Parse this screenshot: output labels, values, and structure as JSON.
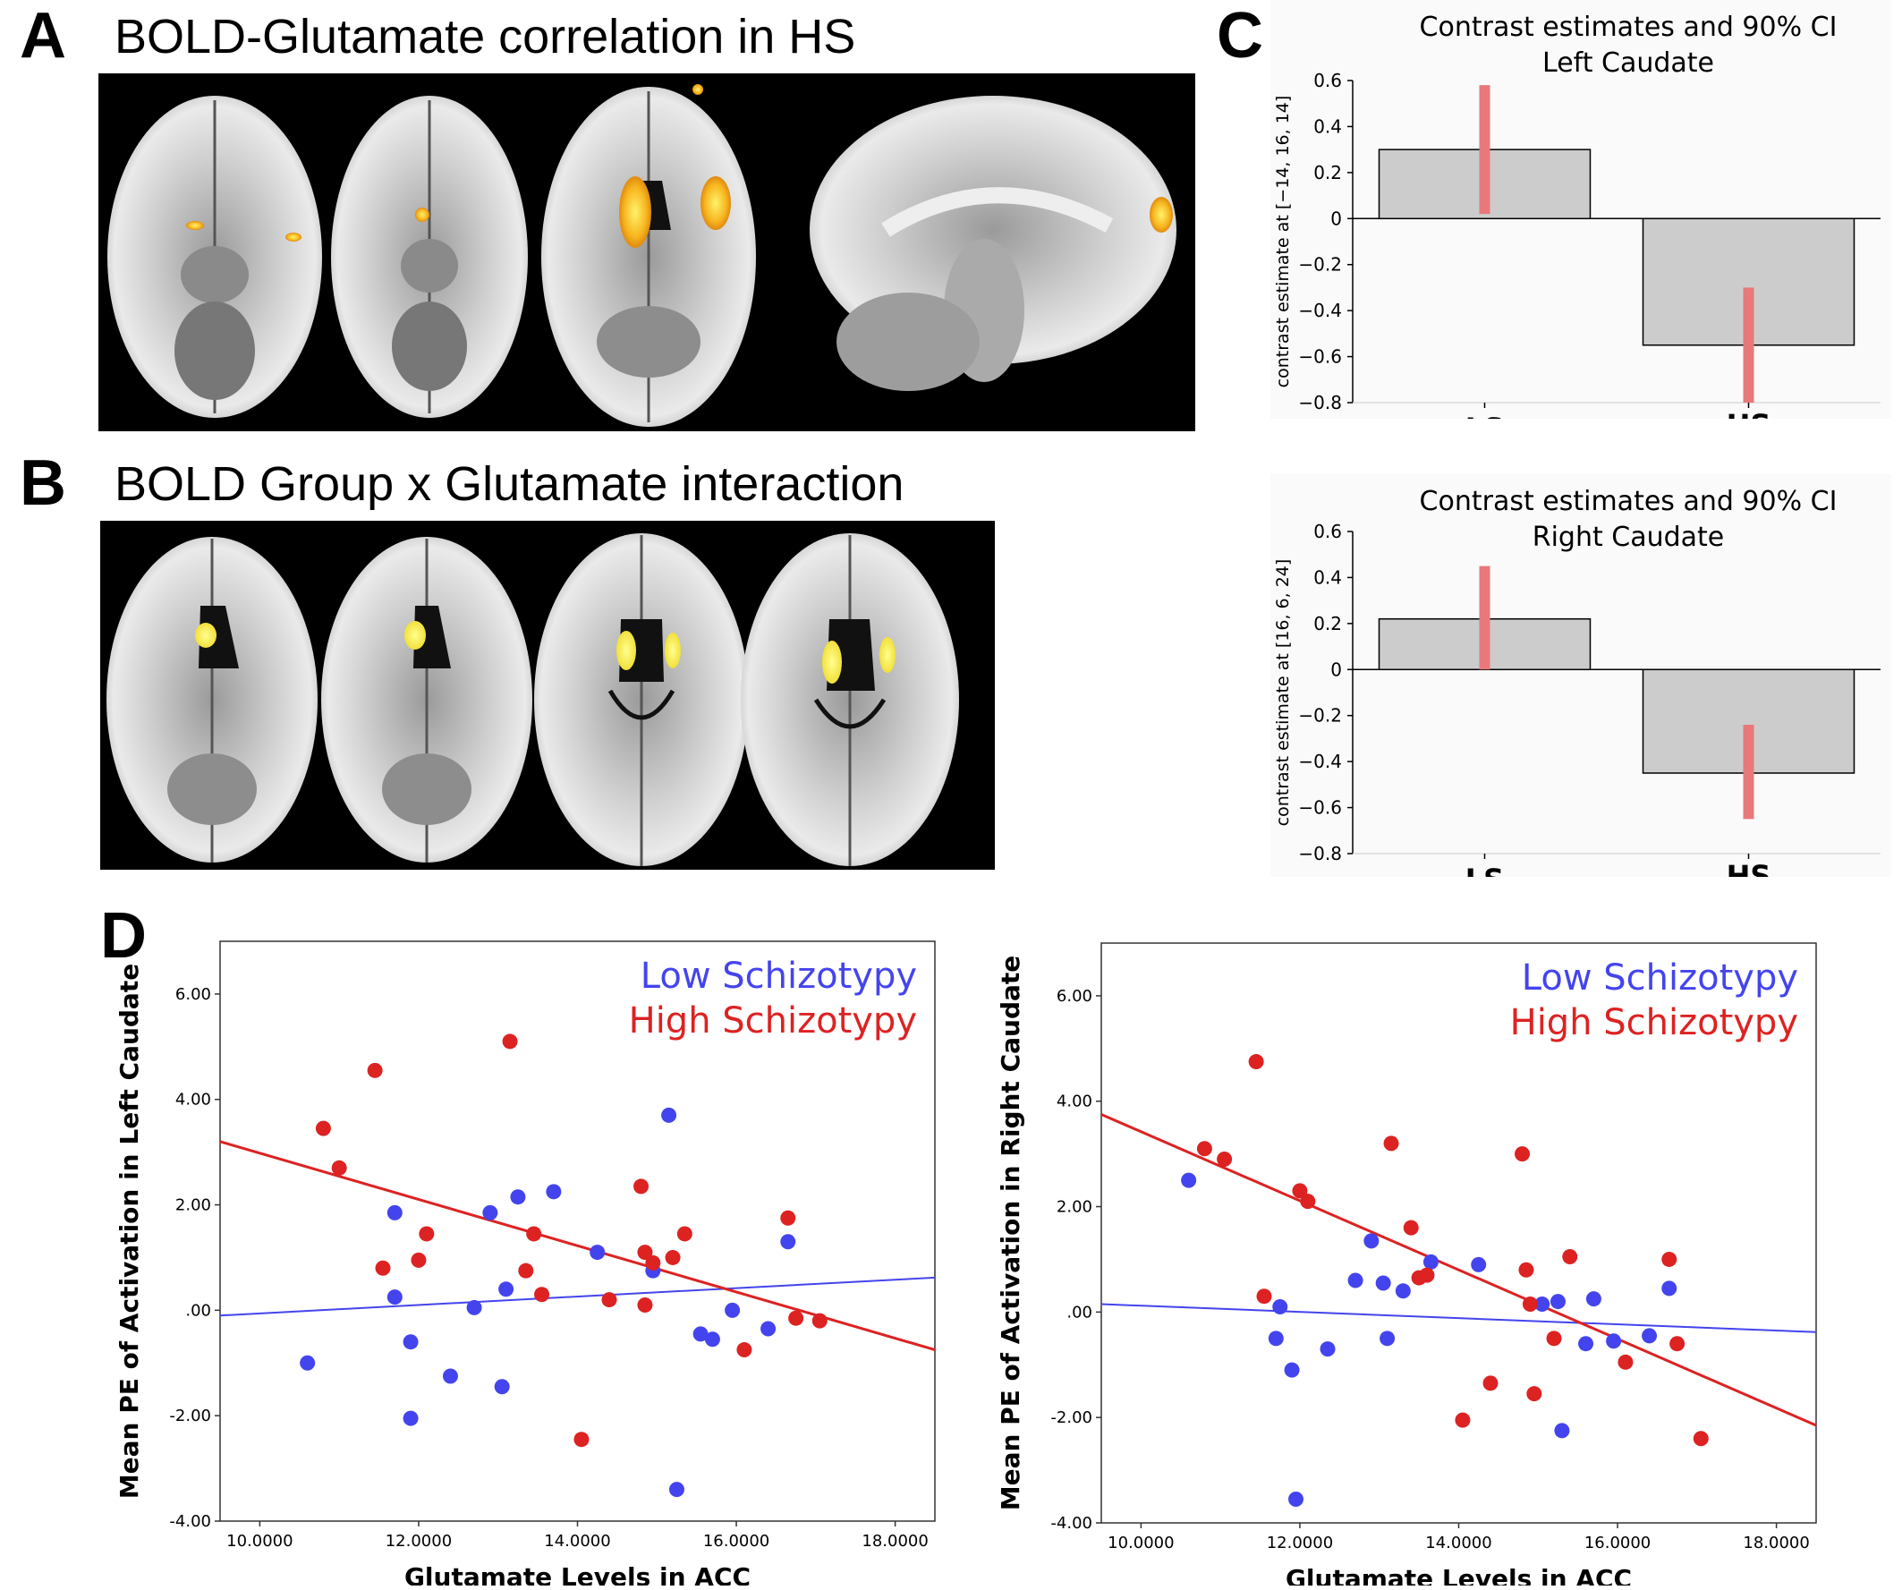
{
  "panels": {
    "A": {
      "letter": "A",
      "title": "BOLD-Glutamate correlation in HS"
    },
    "B": {
      "letter": "B",
      "title": "BOLD Group x Glutamate interaction"
    },
    "C": {
      "letter": "C"
    },
    "D": {
      "letter": "D"
    }
  },
  "chart_data": [
    {
      "type": "bar",
      "id": "c-top",
      "title": "Contrast estimates and 90% CI",
      "subtitle": "Left Caudate",
      "ylabel": "contrast estimate at [−14, 16, 14]",
      "categories": [
        "LS",
        "HS"
      ],
      "values": [
        0.3,
        -0.55
      ],
      "ci": [
        [
          0.02,
          0.58
        ],
        [
          -0.3,
          -0.8
        ]
      ],
      "ylim": [
        -0.8,
        0.6
      ],
      "yticks": [
        "0.6",
        "0.4",
        "0.2",
        "0",
        "−0.2",
        "−0.4",
        "−0.6",
        "−0.8"
      ],
      "bar_color": "#cccccc",
      "ci_color": "#e8787a"
    },
    {
      "type": "bar",
      "id": "c-bottom",
      "title": "Contrast estimates and 90% CI",
      "subtitle": "Right Caudate",
      "ylabel": "contrast estimate at [16, 6, 24]",
      "categories": [
        "LS",
        "HS"
      ],
      "values": [
        0.22,
        -0.45
      ],
      "ci": [
        [
          0.0,
          0.45
        ],
        [
          -0.24,
          -0.65
        ]
      ],
      "ylim": [
        -0.8,
        0.6
      ],
      "yticks": [
        "0.6",
        "0.4",
        "0.2",
        "0",
        "−0.2",
        "−0.4",
        "−0.6",
        "−0.8"
      ],
      "bar_color": "#cccccc",
      "ci_color": "#e8787a"
    },
    {
      "type": "scatter",
      "id": "d-left",
      "xlabel": "Glutamate Levels in ACC",
      "ylabel": "Mean PE of Activation in Left Caudate",
      "xlim": [
        9.5,
        18.5
      ],
      "ylim": [
        -4,
        7
      ],
      "xticks": [
        "10.0000",
        "12.0000",
        "14.0000",
        "16.0000",
        "18.0000"
      ],
      "yticks": [
        "6.00",
        "4.00",
        "2.00",
        ".00",
        "-2.00",
        "-4.00"
      ],
      "legend": [
        "Low Schizotypy",
        "High Schizotypy"
      ],
      "series": [
        {
          "name": "Low Schizotypy",
          "color": "#4444ee",
          "points": [
            [
              10.6,
              -1.0
            ],
            [
              11.7,
              1.85
            ],
            [
              11.7,
              0.25
            ],
            [
              11.9,
              -0.6
            ],
            [
              11.9,
              -2.05
            ],
            [
              12.4,
              -1.25
            ],
            [
              12.7,
              0.05
            ],
            [
              12.9,
              1.85
            ],
            [
              13.05,
              -1.45
            ],
            [
              13.1,
              0.4
            ],
            [
              13.25,
              2.15
            ],
            [
              13.7,
              2.25
            ],
            [
              14.25,
              1.1
            ],
            [
              14.95,
              0.75
            ],
            [
              15.15,
              3.7
            ],
            [
              15.25,
              -3.4
            ],
            [
              15.55,
              -0.45
            ],
            [
              15.7,
              -0.55
            ],
            [
              15.95,
              -0.0
            ],
            [
              16.4,
              -0.35
            ],
            [
              16.65,
              1.3
            ]
          ],
          "fit": [
            [
              9.5,
              -0.1
            ],
            [
              18.5,
              0.62
            ]
          ]
        },
        {
          "name": "High Schizotypy",
          "color": "#dd2222",
          "points": [
            [
              10.8,
              3.45
            ],
            [
              11.0,
              2.7
            ],
            [
              11.45,
              4.55
            ],
            [
              11.55,
              0.8
            ],
            [
              12.0,
              0.95
            ],
            [
              12.1,
              1.45
            ],
            [
              13.15,
              5.1
            ],
            [
              13.35,
              0.75
            ],
            [
              13.45,
              1.45
            ],
            [
              13.55,
              0.3
            ],
            [
              14.05,
              -2.45
            ],
            [
              14.4,
              0.2
            ],
            [
              14.8,
              2.35
            ],
            [
              14.85,
              1.1
            ],
            [
              14.85,
              0.1
            ],
            [
              14.95,
              0.9
            ],
            [
              15.2,
              1.0
            ],
            [
              15.35,
              1.45
            ],
            [
              16.1,
              -0.75
            ],
            [
              16.65,
              1.75
            ],
            [
              16.75,
              -0.15
            ],
            [
              17.05,
              -0.2
            ]
          ],
          "fit": [
            [
              9.5,
              3.2
            ],
            [
              18.5,
              -0.75
            ]
          ]
        }
      ]
    },
    {
      "type": "scatter",
      "id": "d-right",
      "xlabel": "Glutamate Levels in ACC",
      "ylabel": "Mean PE of Activation in Right Caudate",
      "xlim": [
        9.5,
        18.5
      ],
      "ylim": [
        -4,
        7
      ],
      "xticks": [
        "10.0000",
        "12.0000",
        "14.0000",
        "16.0000",
        "18.0000"
      ],
      "yticks": [
        "6.00",
        "4.00",
        "2.00",
        ".00",
        "-2.00",
        "-4.00"
      ],
      "legend": [
        "Low Schizotypy",
        "High Schizotypy"
      ],
      "series": [
        {
          "name": "Low Schizotypy",
          "color": "#4444ee",
          "points": [
            [
              10.6,
              2.5
            ],
            [
              11.7,
              -0.5
            ],
            [
              11.75,
              0.1
            ],
            [
              11.9,
              -1.1
            ],
            [
              11.95,
              -3.55
            ],
            [
              12.35,
              -0.7
            ],
            [
              12.7,
              0.6
            ],
            [
              12.9,
              1.35
            ],
            [
              13.05,
              0.55
            ],
            [
              13.1,
              -0.5
            ],
            [
              13.3,
              0.4
            ],
            [
              13.65,
              0.95
            ],
            [
              14.25,
              0.9
            ],
            [
              15.05,
              0.15
            ],
            [
              15.25,
              0.2
            ],
            [
              15.3,
              -2.25
            ],
            [
              15.6,
              -0.6
            ],
            [
              15.7,
              0.25
            ],
            [
              15.95,
              -0.55
            ],
            [
              16.4,
              -0.45
            ],
            [
              16.65,
              0.45
            ]
          ],
          "fit": [
            [
              9.5,
              0.15
            ],
            [
              18.5,
              -0.38
            ]
          ]
        },
        {
          "name": "High Schizotypy",
          "color": "#dd2222",
          "points": [
            [
              10.8,
              3.1
            ],
            [
              11.05,
              2.9
            ],
            [
              11.45,
              4.75
            ],
            [
              11.55,
              0.3
            ],
            [
              12.0,
              2.3
            ],
            [
              12.1,
              2.1
            ],
            [
              13.15,
              3.2
            ],
            [
              13.4,
              1.6
            ],
            [
              13.5,
              0.65
            ],
            [
              13.6,
              0.7
            ],
            [
              14.05,
              -2.05
            ],
            [
              14.4,
              -1.35
            ],
            [
              14.8,
              3.0
            ],
            [
              14.85,
              0.8
            ],
            [
              14.9,
              0.15
            ],
            [
              14.95,
              -1.55
            ],
            [
              15.2,
              -0.5
            ],
            [
              15.4,
              1.05
            ],
            [
              16.1,
              -0.95
            ],
            [
              16.65,
              1.0
            ],
            [
              16.75,
              -0.6
            ],
            [
              17.05,
              -2.4
            ]
          ],
          "fit": [
            [
              9.5,
              3.75
            ],
            [
              18.5,
              -2.15
            ]
          ]
        }
      ]
    }
  ]
}
